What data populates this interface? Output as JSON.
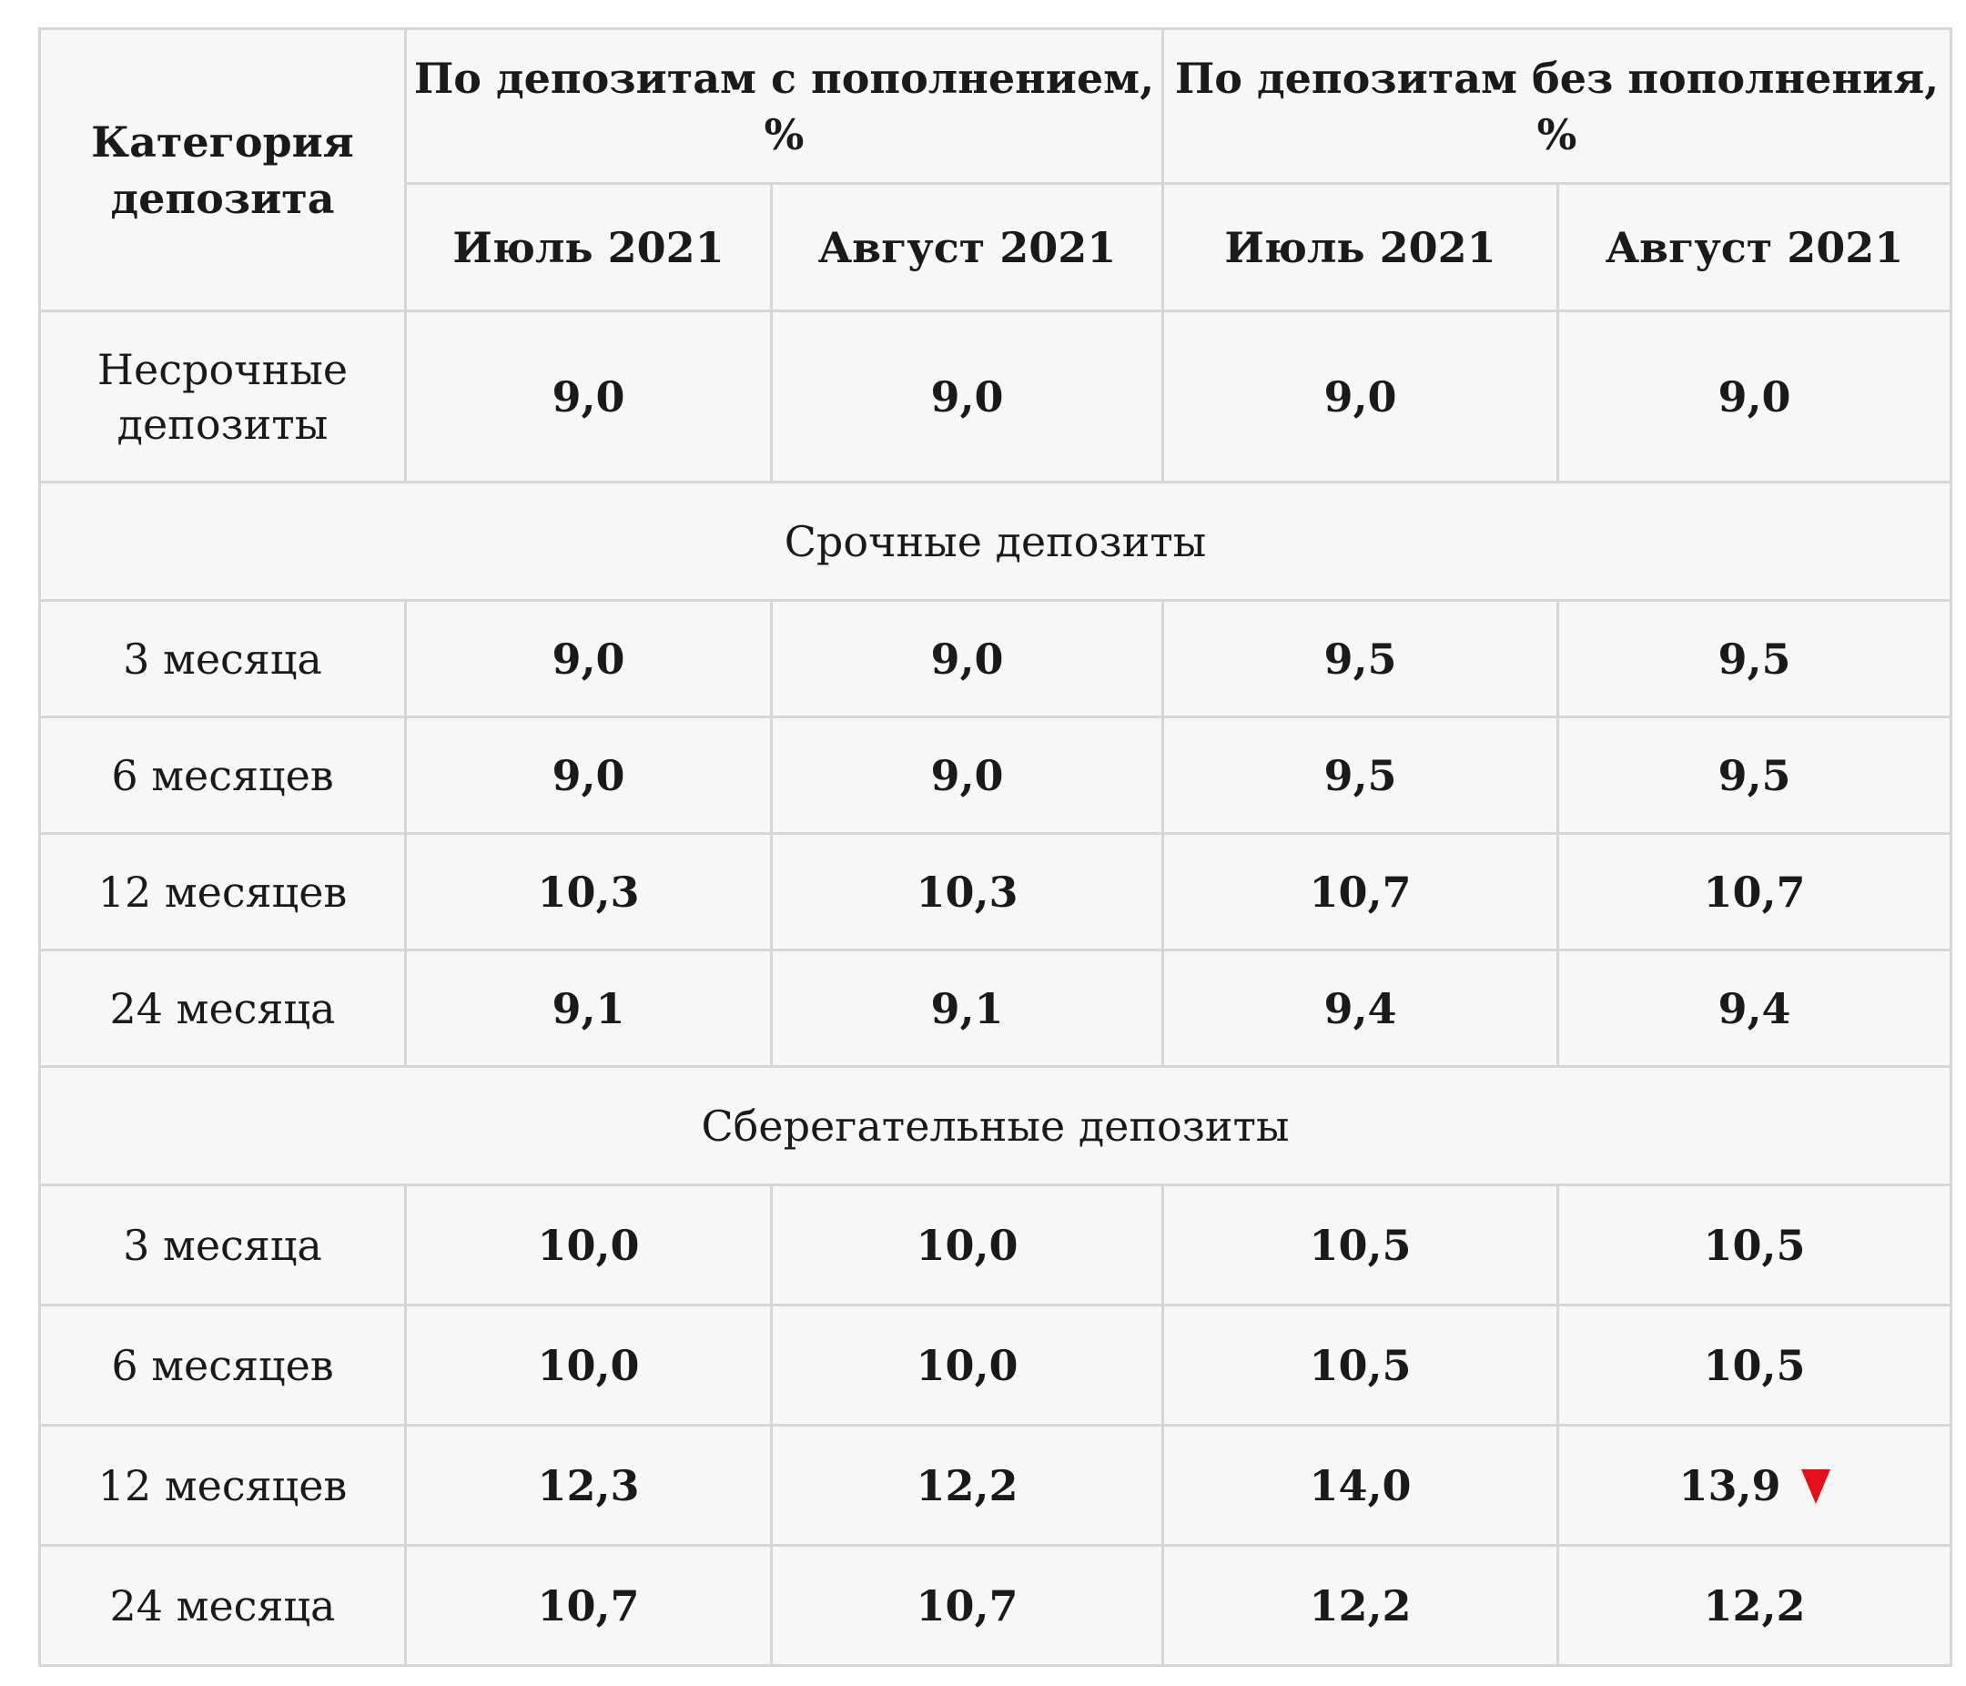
{
  "header": {
    "category": "Категория депозита",
    "group_with": "По депозитам с пополнением, %",
    "group_without": "По депозитам без пополнения, %",
    "months": [
      "Июль 2021",
      "Август 2021",
      "Июль 2021",
      "Август 2021"
    ]
  },
  "perpetual": {
    "label": "Несрочные депозиты",
    "values": [
      "9,0",
      "9,0",
      "9,0",
      "9,0"
    ]
  },
  "term": {
    "title": "Срочные депозиты",
    "rows": [
      {
        "label": "3 месяца",
        "values": [
          "9,0",
          "9,0",
          "9,5",
          "9,5"
        ]
      },
      {
        "label": "6 месяцев",
        "values": [
          "9,0",
          "9,0",
          "9,5",
          "9,5"
        ]
      },
      {
        "label": "12 месяцев",
        "values": [
          "10,3",
          "10,3",
          "10,7",
          "10,7"
        ]
      },
      {
        "label": "24 месяца",
        "values": [
          "9,1",
          "9,1",
          "9,4",
          "9,4"
        ]
      }
    ]
  },
  "savings": {
    "title": "Сберегательные депозиты",
    "rows": [
      {
        "label": "3 месяца",
        "values": [
          "10,0",
          "10,0",
          "10,5",
          "10,5"
        ]
      },
      {
        "label": "6 месяцев",
        "values": [
          "10,0",
          "10,0",
          "10,5",
          "10,5"
        ]
      },
      {
        "label": "12 месяцев",
        "values": [
          "12,3",
          "12,2",
          "14,0",
          "13,9"
        ]
      },
      {
        "label": "24 месяца",
        "values": [
          "10,7",
          "10,7",
          "12,2",
          "12,2"
        ]
      }
    ]
  },
  "indicator": {
    "icon": "down-triangle-icon",
    "color": "#e3101a"
  }
}
